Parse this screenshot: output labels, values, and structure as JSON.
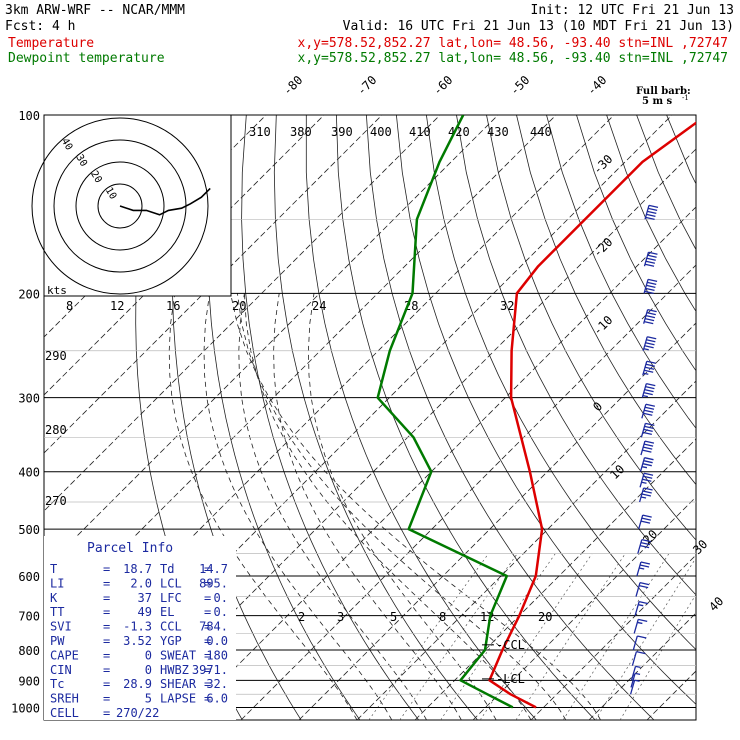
{
  "header": {
    "line1_left": "3km ARW-WRF -- NCAR/MMM",
    "line1_right": "Init: 12 UTC Fri 21 Jun 13",
    "line2_left": "Fcst:    4 h",
    "line2_right": "Valid: 16 UTC Fri 21 Jun 13 (10 MDT Fri 21 Jun 13)",
    "line3_label": "Temperature",
    "line3_info": "x,y=578.52,852.27   lat,lon= 48.56, -93.40  stn=INL ,72747",
    "line4_label": "Dewpoint temperature",
    "line4_info": "x,y=578.52,852.27   lat,lon= 48.56, -93.40  stn=INL ,72747"
  },
  "colors": {
    "temperature": "#dd0000",
    "dewpoint": "#007a00",
    "barb": "#1c2aa0",
    "parcel_text": "#1c2aa0"
  },
  "barb_legend": {
    "title": "Full barb:",
    "value": "5 m s",
    "unit_exp": "-1"
  },
  "chart_data": {
    "type": "line",
    "pressure_levels": [
      {
        "p": 100,
        "label": "100"
      },
      {
        "p": 200,
        "label": "200"
      },
      {
        "p": 300,
        "label": "300"
      },
      {
        "p": 400,
        "label": "400"
      },
      {
        "p": 500,
        "label": "500"
      },
      {
        "p": 600,
        "label": "600"
      },
      {
        "p": 700,
        "label": "700"
      },
      {
        "p": 800,
        "label": "800"
      },
      {
        "p": 900,
        "label": "900"
      },
      {
        "p": 1000,
        "label": "1000"
      }
    ],
    "isotherm_labels": [
      "-80",
      "-70",
      "-60",
      "-50",
      "-40",
      "-30",
      "-20",
      "-10",
      "0",
      "10",
      "20",
      "30",
      "40"
    ],
    "theta_top_labels": [
      "310",
      "380",
      "390",
      "400",
      "410",
      "420",
      "430",
      "440"
    ],
    "mixing_ratio_labels_200": [
      "8",
      "12",
      "16",
      "20",
      "24",
      "28",
      "32"
    ],
    "mixing_ratio_labels_700": [
      "2",
      "3",
      "5",
      "8",
      "12",
      "20"
    ],
    "theta_side_labels": [
      "290",
      "280",
      "270"
    ],
    "series": [
      {
        "name": "Temperature",
        "values": [
          [
            100,
            -54
          ],
          [
            120,
            -57
          ],
          [
            150,
            -57
          ],
          [
            180,
            -57
          ],
          [
            200,
            -56
          ],
          [
            250,
            -47
          ],
          [
            300,
            -39
          ],
          [
            400,
            -23
          ],
          [
            500,
            -11
          ],
          [
            600,
            -4
          ],
          [
            700,
            0
          ],
          [
            800,
            3
          ],
          [
            900,
            6
          ],
          [
            950,
            12
          ],
          [
            1000,
            18.7
          ]
        ]
      },
      {
        "name": "Dewpoint temperature",
        "values": [
          [
            100,
            -96
          ],
          [
            120,
            -92
          ],
          [
            150,
            -86
          ],
          [
            200,
            -74
          ],
          [
            250,
            -68
          ],
          [
            300,
            -62
          ],
          [
            350,
            -49
          ],
          [
            400,
            -40
          ],
          [
            500,
            -34
          ],
          [
            600,
            -9
          ],
          [
            700,
            -5
          ],
          [
            800,
            0
          ],
          [
            900,
            1
          ],
          [
            950,
            8
          ],
          [
            1000,
            14.7
          ]
        ]
      }
    ],
    "annotations": [
      {
        "text": "CCL",
        "p": 784
      },
      {
        "text": "LCL",
        "p": 895
      }
    ]
  },
  "hodograph": {
    "axis_label": "kts",
    "ring_labels": [
      "10",
      "20",
      "30",
      "40"
    ],
    "trace": [
      [
        0,
        0
      ],
      [
        6,
        -2
      ],
      [
        12,
        -2
      ],
      [
        18,
        -4
      ],
      [
        22,
        -2
      ],
      [
        28,
        -1
      ],
      [
        32,
        1
      ],
      [
        37,
        4
      ],
      [
        41,
        8
      ]
    ]
  },
  "wind_barbs": [
    {
      "p": 150,
      "speed": 50
    },
    {
      "p": 180,
      "speed": 50
    },
    {
      "p": 200,
      "speed": 50
    },
    {
      "p": 225,
      "speed": 50
    },
    {
      "p": 250,
      "speed": 45
    },
    {
      "p": 275,
      "speed": 45
    },
    {
      "p": 300,
      "speed": 45
    },
    {
      "p": 325,
      "speed": 40
    },
    {
      "p": 350,
      "speed": 40
    },
    {
      "p": 375,
      "speed": 40
    },
    {
      "p": 400,
      "speed": 35
    },
    {
      "p": 425,
      "speed": 35
    },
    {
      "p": 450,
      "speed": 35
    },
    {
      "p": 500,
      "speed": 30
    },
    {
      "p": 550,
      "speed": 30
    },
    {
      "p": 600,
      "speed": 25
    },
    {
      "p": 650,
      "speed": 20
    },
    {
      "p": 700,
      "speed": 15
    },
    {
      "p": 750,
      "speed": 15
    },
    {
      "p": 800,
      "speed": 10
    },
    {
      "p": 850,
      "speed": 10
    },
    {
      "p": 900,
      "speed": 5
    },
    {
      "p": 925,
      "speed": 5
    },
    {
      "p": 950,
      "speed": 5
    }
  ],
  "parcel": {
    "title": "Parcel Info",
    "rows": [
      {
        "a_label": "T",
        "a_value": "18.7",
        "b_label": "Td",
        "b_value": "14.7"
      },
      {
        "a_label": "LI",
        "a_value": "2.0",
        "b_label": "LCL",
        "b_value": "895."
      },
      {
        "a_label": "K",
        "a_value": "37",
        "b_label": "LFC",
        "b_value": "0."
      },
      {
        "a_label": "TT",
        "a_value": "49",
        "b_label": "EL",
        "b_value": "0."
      },
      {
        "a_label": "SVI",
        "a_value": "-1.3",
        "b_label": "CCL",
        "b_value": "784."
      },
      {
        "a_label": "PW",
        "a_value": "3.52",
        "b_label": "YGP",
        "b_value": "0.0"
      },
      {
        "a_label": "CAPE",
        "a_value": "0",
        "b_label": "SWEAT",
        "b_value": "180"
      },
      {
        "a_label": "CIN",
        "a_value": "0",
        "b_label": "HWBZ",
        "b_value": "3971."
      },
      {
        "a_label": "Tc",
        "a_value": "28.9",
        "b_label": "SHEAR",
        "b_value": "32."
      },
      {
        "a_label": "SREH",
        "a_value": "5",
        "b_label": "LAPSE",
        "b_value": "6.0"
      }
    ],
    "cell_label": "CELL",
    "cell_value": "270/22"
  }
}
